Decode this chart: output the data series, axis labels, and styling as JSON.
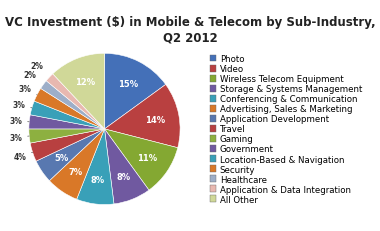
{
  "title": "VC Investment ($) in Mobile & Telecom by Sub-Industry, Q2 2012",
  "labels": [
    "Photo",
    "Video",
    "Wireless Telecom Equipment",
    "Storage & Systems Management",
    "Conferencing & Communication",
    "Advertising, Sales & Marketing",
    "Application Development",
    "Travel",
    "Gaming",
    "Government",
    "Location-Based & Navigation",
    "Security",
    "Healthcare",
    "Application & Data Integration",
    "All Other"
  ],
  "values": [
    15,
    14,
    11,
    8,
    8,
    7,
    5,
    4,
    3,
    3,
    3,
    3,
    2,
    2,
    12
  ],
  "colors": [
    "#4470B8",
    "#B94040",
    "#84A832",
    "#7059A0",
    "#39A0B8",
    "#D97828",
    "#5878B0",
    "#B84040",
    "#8DB040",
    "#7059A0",
    "#39A0B8",
    "#D97828",
    "#9DAEC8",
    "#E8B8B0",
    "#D0D898"
  ],
  "title_fontsize": 8.5,
  "legend_fontsize": 6.2
}
